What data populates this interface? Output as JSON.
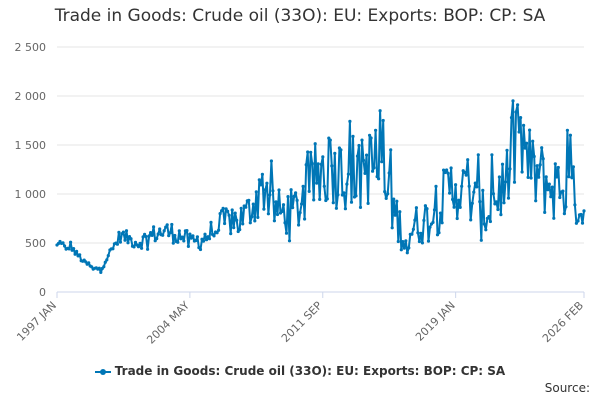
{
  "title": "Trade in Goods: Crude oil (33O): EU: Exports: BOP: CP: SA",
  "legend_label": "Trade in Goods: Crude oil (33O): EU: Exports: BOP: CP: SA",
  "source_label": "Source:",
  "colors": {
    "series": "#0076b6",
    "grid": "#e6e6e6",
    "axis_text": "#666666"
  },
  "chart_data": {
    "type": "line",
    "title": "Trade in Goods: Crude oil (33O): EU: Exports: BOP: CP: SA",
    "xlabel": "",
    "ylabel": "",
    "ylim": [
      0,
      2500
    ],
    "yticks": [
      0,
      500,
      1000,
      1500,
      2000,
      2500
    ],
    "ytick_labels": [
      "0",
      "500",
      "1 000",
      "1 500",
      "2 000",
      "2 500"
    ],
    "xlim": [
      "1997-01",
      "2026-02"
    ],
    "xticks": [
      "1997-01",
      "2004-05",
      "2011-09",
      "2019-01",
      "2026-02"
    ],
    "xtick_labels": [
      "1997 JAN",
      "2004 MAY",
      "2011 SEP",
      "2019 JAN",
      "2026 FEB"
    ],
    "grid": true,
    "legend_position": "bottom",
    "series": [
      {
        "name": "Trade in Goods: Crude oil (33O): EU: Exports: BOP: CP: SA",
        "frequency": "monthly",
        "anchors": [
          [
            "1997-01",
            470
          ],
          [
            "1997-04",
            520
          ],
          [
            "1997-07",
            420
          ],
          [
            "1997-10",
            480
          ],
          [
            "1998-01",
            400
          ],
          [
            "1998-04",
            360
          ],
          [
            "1998-07",
            300
          ],
          [
            "1998-10",
            280
          ],
          [
            "1999-01",
            230
          ],
          [
            "1999-04",
            240
          ],
          [
            "1999-07",
            260
          ],
          [
            "1999-10",
            350
          ],
          [
            "2000-01",
            420
          ],
          [
            "2000-04",
            500
          ],
          [
            "2000-07",
            580
          ],
          [
            "2000-10",
            560
          ],
          [
            "2001-01",
            540
          ],
          [
            "2001-07",
            500
          ],
          [
            "2002-01",
            560
          ],
          [
            "2002-07",
            600
          ],
          [
            "2003-01",
            620
          ],
          [
            "2003-07",
            600
          ],
          [
            "2004-01",
            560
          ],
          [
            "2004-05",
            500
          ],
          [
            "2004-09",
            520
          ],
          [
            "2005-01",
            540
          ],
          [
            "2005-07",
            600
          ],
          [
            "2006-01",
            680
          ],
          [
            "2006-07",
            740
          ],
          [
            "2007-01",
            720
          ],
          [
            "2007-07",
            800
          ],
          [
            "2008-01",
            960
          ],
          [
            "2008-07",
            1080
          ],
          [
            "2009-01",
            850
          ],
          [
            "2009-07",
            800
          ],
          [
            "2010-01",
            820
          ],
          [
            "2010-07",
            900
          ],
          [
            "2011-01",
            1100
          ],
          [
            "2011-09",
            1250
          ],
          [
            "2012-03",
            1300
          ],
          [
            "2012-09",
            1200
          ],
          [
            "2013-03",
            1280
          ],
          [
            "2013-09",
            1150
          ],
          [
            "2014-03",
            1300
          ],
          [
            "2014-09",
            1200
          ],
          [
            "2015-03",
            1000
          ],
          [
            "2015-09",
            800
          ],
          [
            "2016-03",
            550
          ],
          [
            "2016-09",
            650
          ],
          [
            "2017-03",
            720
          ],
          [
            "2017-09",
            750
          ],
          [
            "2018-03",
            900
          ],
          [
            "2018-09",
            1050
          ],
          [
            "2019-01",
            1100
          ],
          [
            "2019-07",
            1000
          ],
          [
            "2020-01",
            950
          ],
          [
            "2020-05",
            750
          ],
          [
            "2020-11",
            850
          ],
          [
            "2021-05",
            1000
          ],
          [
            "2021-11",
            1150
          ],
          [
            "2022-05",
            1550
          ],
          [
            "2022-11",
            1350
          ],
          [
            "2023-05",
            1200
          ],
          [
            "2023-11",
            1150
          ],
          [
            "2024-05",
            1050
          ],
          [
            "2024-11",
            1100
          ],
          [
            "2025-05",
            1000
          ],
          [
            "2025-10",
            950
          ],
          [
            "2026-02",
            780
          ]
        ],
        "spikes": [
          [
            "2014-11",
            1850
          ],
          [
            "2015-01",
            1750
          ],
          [
            "2014-08",
            1650
          ],
          [
            "2015-06",
            1450
          ],
          [
            "2022-06",
            1910
          ],
          [
            "2022-08",
            1780
          ],
          [
            "2022-10",
            1700
          ],
          [
            "2025-03",
            1650
          ],
          [
            "2025-05",
            1600
          ],
          [
            "2021-01",
            1400
          ],
          [
            "2019-09",
            1350
          ],
          [
            "2020-04",
            1400
          ],
          [
            "2012-02",
            1550
          ],
          [
            "2016-06",
            450
          ],
          [
            "2016-05",
            400
          ],
          [
            "2012-09",
            1450
          ],
          [
            "2013-11",
            1550
          ],
          [
            "2008-05",
            1200
          ]
        ]
      }
    ]
  }
}
